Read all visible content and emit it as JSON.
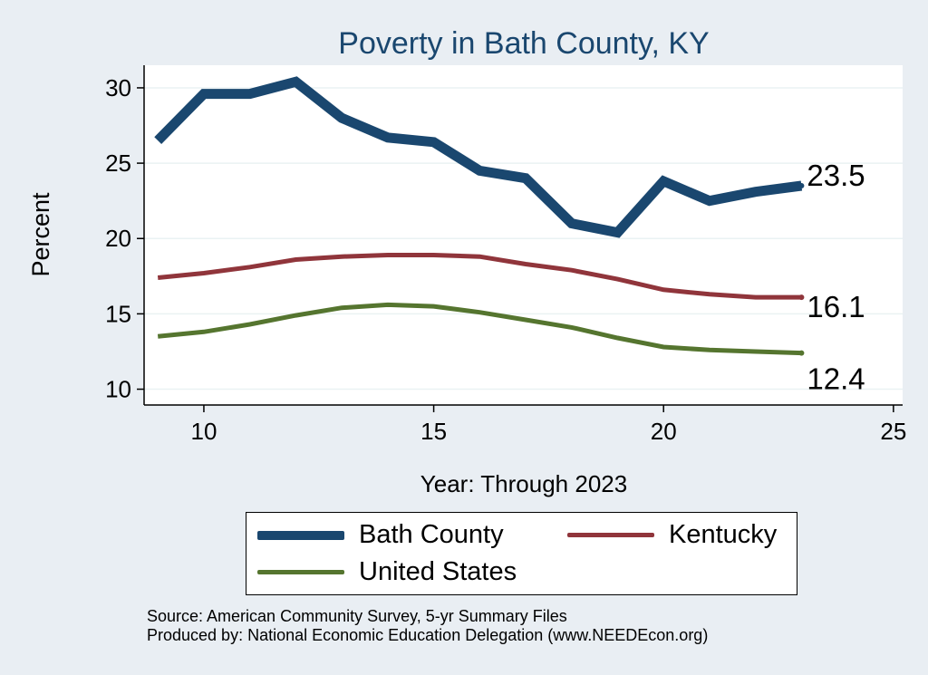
{
  "chart_data": {
    "type": "line",
    "title": "Poverty in Bath County, KY",
    "xlabel": "Year: Through 2023",
    "ylabel": "Percent",
    "xlim": [
      8.7,
      25.2
    ],
    "ylim": [
      8.95,
      31.5
    ],
    "xticks": [
      10,
      15,
      20,
      25
    ],
    "yticks": [
      10,
      15,
      20,
      25,
      30
    ],
    "grid": true,
    "legend_position": "bottom",
    "x": [
      9,
      10,
      11,
      12,
      13,
      14,
      15,
      16,
      17,
      18,
      19,
      20,
      21,
      22,
      23
    ],
    "series": [
      {
        "name": "Bath County",
        "color": "#1a476f",
        "values": [
          26.5,
          29.6,
          29.6,
          30.4,
          28.0,
          26.7,
          26.4,
          24.5,
          24.0,
          21.0,
          20.4,
          23.8,
          22.5,
          23.1,
          23.5
        ],
        "end_label": "23.5"
      },
      {
        "name": "Kentucky",
        "color": "#90353b",
        "values": [
          17.4,
          17.7,
          18.1,
          18.6,
          18.8,
          18.9,
          18.9,
          18.8,
          18.3,
          17.9,
          17.3,
          16.6,
          16.3,
          16.1,
          16.1
        ],
        "end_label": "16.1"
      },
      {
        "name": "United States",
        "color": "#55752f",
        "values": [
          13.5,
          13.8,
          14.3,
          14.9,
          15.4,
          15.6,
          15.5,
          15.1,
          14.6,
          14.1,
          13.4,
          12.8,
          12.6,
          12.5,
          12.4
        ],
        "end_label": "12.4"
      }
    ]
  },
  "source_lines": [
    "Source: American Community Survey, 5-yr Summary Files",
    "Produced by: National Economic Education Delegation (www.NEEDEcon.org)"
  ]
}
